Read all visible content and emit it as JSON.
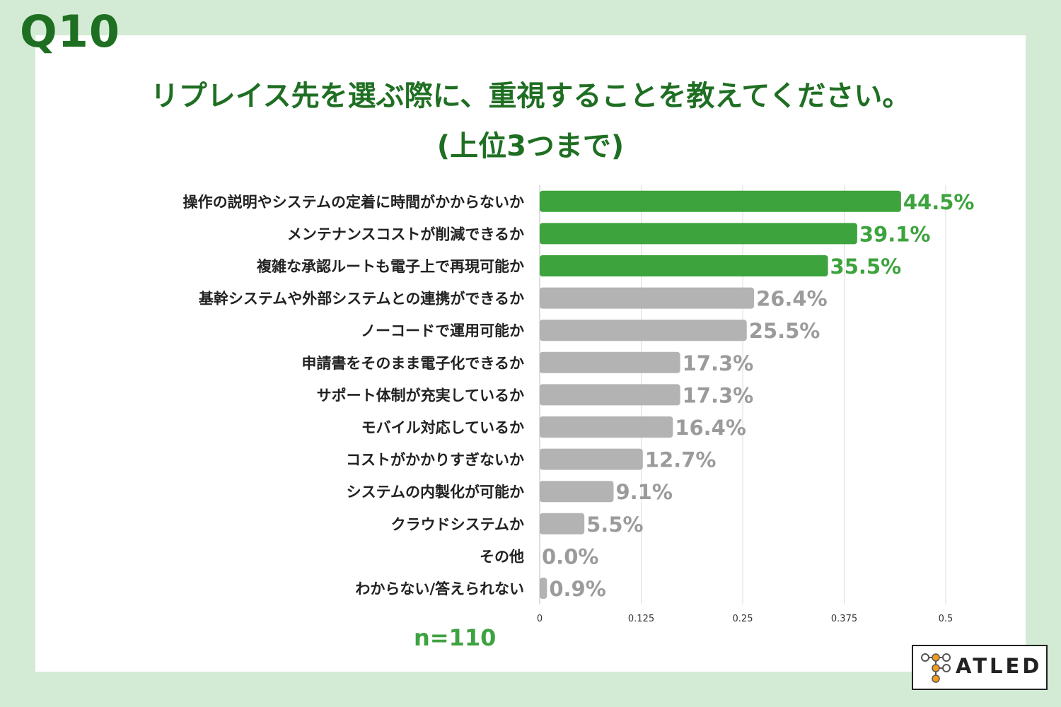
{
  "header": {
    "q_number": "Q10",
    "title_line1": "リプレイス先を選ぶ際に、重視することを教えてください。",
    "title_line2": "(上位3つまで)"
  },
  "sample": "n=110",
  "brand": {
    "name": "ATLED"
  },
  "colors": {
    "highlight": "#3ca33d",
    "normal": "#b3b3b3",
    "highlight_text": "#3ca33d",
    "normal_text": "#9b9b9b"
  },
  "chart_data": {
    "type": "bar",
    "orientation": "horizontal",
    "categories": [
      "操作の説明やシステムの定着に時間がかからないか",
      "メンテナンスコストが削減できるか",
      "複雑な承認ルートも電子上で再現可能か",
      "基幹システムや外部システムとの連携ができるか",
      "ノーコードで運用可能か",
      "申請書をそのまま電子化できるか",
      "サポート体制が充実しているか",
      "モバイル対応しているか",
      "コストがかかりすぎないか",
      "システムの内製化が可能か",
      "クラウドシステムか",
      "その他",
      "わからない/答えられない"
    ],
    "values": [
      0.445,
      0.391,
      0.355,
      0.264,
      0.255,
      0.173,
      0.173,
      0.164,
      0.127,
      0.091,
      0.055,
      0.0,
      0.009
    ],
    "value_labels": [
      "44.5%",
      "39.1%",
      "35.5%",
      "26.4%",
      "25.5%",
      "17.3%",
      "17.3%",
      "16.4%",
      "12.7%",
      "9.1%",
      "5.5%",
      "0.0%",
      "0.9%"
    ],
    "highlighted_count": 3,
    "xlim": [
      0,
      0.5
    ],
    "xticks": [
      0,
      0.125,
      0.25,
      0.375,
      0.5
    ],
    "xtick_labels": [
      "0",
      "0.125",
      "0.25",
      "0.375",
      "0.5"
    ],
    "grid": true,
    "legend": "none"
  }
}
